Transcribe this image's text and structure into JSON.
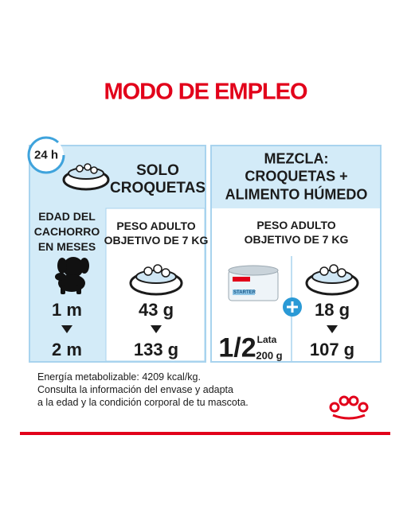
{
  "title": "MODO DE EMPLEO",
  "timer": "24 h",
  "left": {
    "header": [
      "SOLO",
      "CROQUETAS"
    ],
    "age_label": [
      "EDAD DEL",
      "CACHORRO",
      "EN MESES"
    ],
    "weight_label": [
      "PESO ADULTO",
      "OBJETIVO DE 7 KG"
    ],
    "ages": [
      "1 m",
      "2 m"
    ],
    "amounts": [
      "43 g",
      "133 g"
    ]
  },
  "right": {
    "header": [
      "MEZCLA:",
      "CROQUETAS +",
      "ALIMENTO HÚMEDO"
    ],
    "weight_label": [
      "PESO ADULTO",
      "OBJETIVO DE 7 KG"
    ],
    "fraction": "1/2",
    "can_unit": "Lata",
    "can_weight": "200 g",
    "can_text": "STARTER",
    "amounts": [
      "18 g",
      "107 g"
    ]
  },
  "footer": [
    "Energía metabolizable: 4209 kcal/kg.",
    "Consulta la información del envase y adapta",
    "a la edad y la condición corporal de tu mascota."
  ]
}
